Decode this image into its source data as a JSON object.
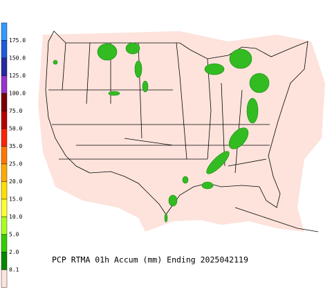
{
  "title": "PCP RTMA 01h Accum (mm) Ending 2025042119",
  "legend": {
    "labels": [
      "175.0",
      "150.0",
      "125.0",
      "100.0",
      "75.0",
      "50.0",
      "35.0",
      "25.0",
      "20.0",
      "15.0",
      "10.0",
      "5.0",
      "2.0",
      "0.1"
    ]
  }
}
